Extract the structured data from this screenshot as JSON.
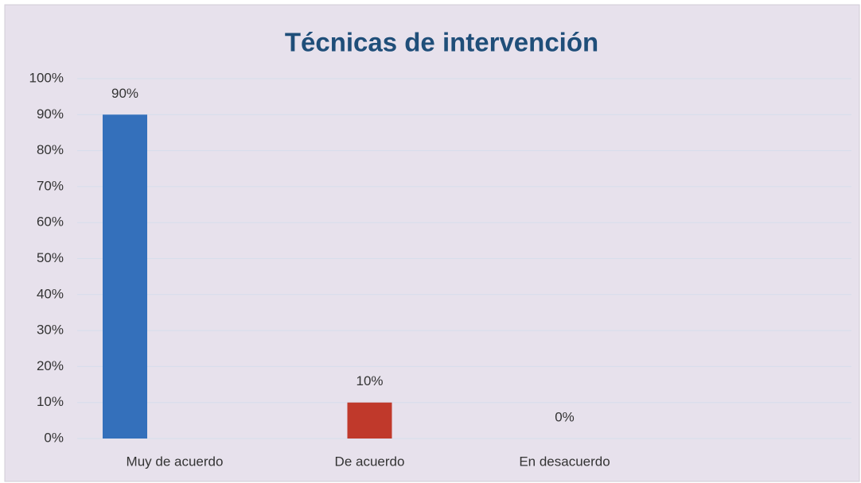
{
  "chart_data": {
    "type": "bar",
    "title": "Técnicas de intervención",
    "categories": [
      "Muy de acuerdo",
      "De acuerdo",
      "En desacuerdo"
    ],
    "values": [
      90,
      10,
      0
    ],
    "value_labels": [
      "90%",
      "10%",
      "0%"
    ],
    "colors": [
      "#3470bb",
      "#c0392b",
      "#9bbb59"
    ],
    "ylim": [
      0,
      100
    ],
    "yticks": [
      {
        "value": 0,
        "label": "0%"
      },
      {
        "value": 10,
        "label": "10%"
      },
      {
        "value": 20,
        "label": "20%"
      },
      {
        "value": 30,
        "label": "30%"
      },
      {
        "value": 40,
        "label": "40%"
      },
      {
        "value": 50,
        "label": "50%"
      },
      {
        "value": 60,
        "label": "60%"
      },
      {
        "value": 70,
        "label": "70%"
      },
      {
        "value": 80,
        "label": "80%"
      },
      {
        "value": 90,
        "label": "90%"
      },
      {
        "value": 100,
        "label": "100%"
      }
    ],
    "grid": true
  }
}
